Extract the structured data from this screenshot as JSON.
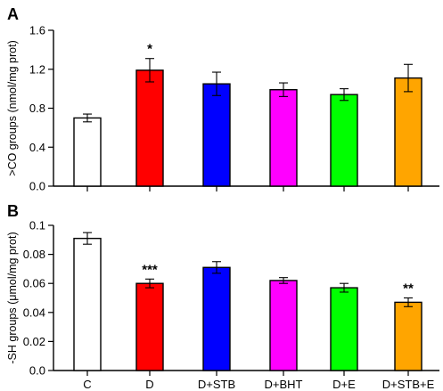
{
  "categories": [
    "C",
    "D",
    "D+STB",
    "D+BHT",
    "D+E",
    "D+STB+E"
  ],
  "bar_colors": [
    "#ffffff",
    "#ff0000",
    "#0000ff",
    "#ff00ff",
    "#00ff00",
    "#ffa500"
  ],
  "chart_data": [
    {
      "type": "bar",
      "panel_label": "A",
      "ylabel": ">CO groups (nmol/mg prot)",
      "ylim": [
        0,
        1.6
      ],
      "yticks": [
        "0.0",
        "0.4",
        "0.8",
        "1.2",
        "1.6"
      ],
      "ytick_values": [
        0,
        0.4,
        0.8,
        1.2,
        1.6
      ],
      "categories": [
        "C",
        "D",
        "D+STB",
        "D+BHT",
        "D+E",
        "D+STB+E"
      ],
      "values": [
        0.7,
        1.19,
        1.05,
        0.99,
        0.94,
        1.11
      ],
      "errors": [
        0.04,
        0.12,
        0.12,
        0.07,
        0.06,
        0.14
      ],
      "significance": [
        "",
        "*",
        "",
        "",
        "",
        ""
      ],
      "show_xtick_labels": false
    },
    {
      "type": "bar",
      "panel_label": "B",
      "ylabel": "-SH groups (μmol/mg prot)",
      "ylim": [
        0,
        0.1
      ],
      "yticks": [
        "0.0",
        "0.02",
        "0.04",
        "0.06",
        "0.08",
        "0.1"
      ],
      "ytick_values": [
        0,
        0.02,
        0.04,
        0.06,
        0.08,
        0.1
      ],
      "categories": [
        "C",
        "D",
        "D+STB",
        "D+BHT",
        "D+E",
        "D+STB+E"
      ],
      "values": [
        0.091,
        0.06,
        0.071,
        0.062,
        0.057,
        0.047
      ],
      "errors": [
        0.004,
        0.003,
        0.004,
        0.002,
        0.003,
        0.003
      ],
      "significance": [
        "",
        "***",
        "",
        "",
        "",
        "**"
      ],
      "show_xtick_labels": true
    }
  ]
}
